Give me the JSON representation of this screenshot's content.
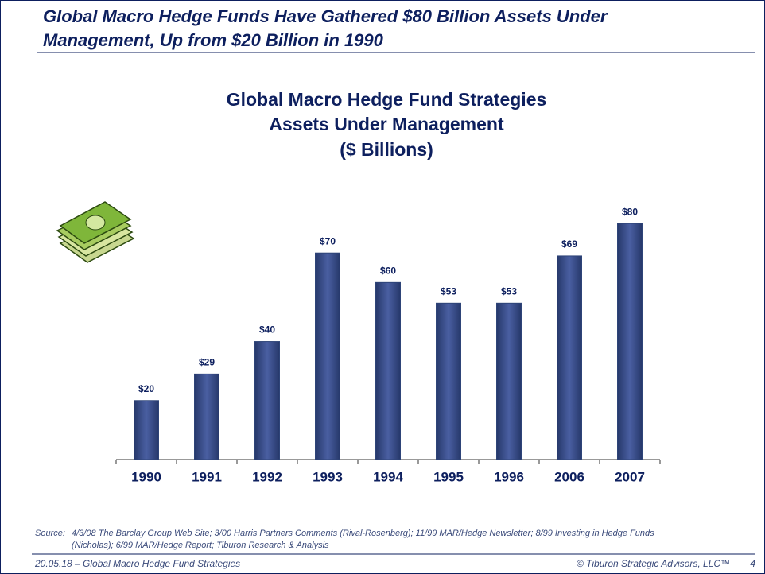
{
  "header": {
    "lines": [
      "Global Macro Hedge Funds Have Gathered $80 Billion Assets Under",
      "Management, Up from $20 Billion in 1990"
    ]
  },
  "chart_data": {
    "type": "bar",
    "title": "Global Macro Hedge Fund Strategies",
    "subtitle": "Assets Under Management",
    "unit_label": "($ Billions)",
    "categories": [
      "1990",
      "1991",
      "1992",
      "1993",
      "1994",
      "1995",
      "1996",
      "2006",
      "2007"
    ],
    "values": [
      20,
      29,
      40,
      70,
      60,
      53,
      53,
      69,
      80
    ],
    "value_labels": [
      "$20",
      "$29",
      "$40",
      "$70",
      "$60",
      "$53",
      "$53",
      "$69",
      "$80"
    ],
    "color": "#2e4478",
    "ylim": [
      0,
      90
    ]
  },
  "source": {
    "label": "Source:",
    "lines": [
      "4/3/08 The Barclay Group Web Site; 3/00 Harris Partners Comments (Rival-Rosenberg); 11/99 MAR/Hedge Newsletter; 8/99 Investing in Hedge Funds",
      "(Nicholas); 6/99 MAR/Hedge Report; Tiburon Research & Analysis"
    ]
  },
  "footer": {
    "left": "20.05.18 – Global Macro Hedge Fund Strategies",
    "right": "© Tiburon Strategic Advisors, LLC™",
    "page": "4"
  }
}
